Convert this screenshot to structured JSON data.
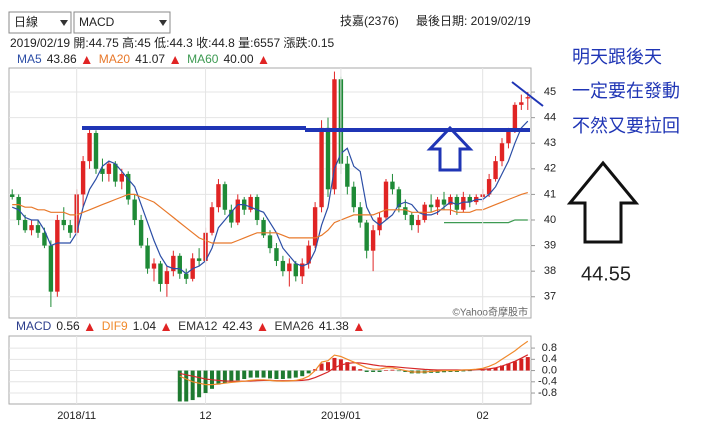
{
  "header": {
    "period": "日線",
    "indicator": "MACD",
    "stock": "技嘉(2376)",
    "last_date": "最後日期: 2019/02/19",
    "quote": "2019/02/19 開:44.75 高:45 低:44.3 收:44.8 量:6557 漲跌:0.15"
  },
  "chart_data": [
    {
      "type": "candlestick",
      "open": [
        41.0,
        40.9,
        40.0,
        39.6,
        39.8,
        39.5,
        39.0,
        37.2,
        40.0,
        39.8,
        39.5,
        41.0,
        42.3,
        43.4,
        42.0,
        41.8,
        42.2,
        41.5,
        41.8,
        40.8,
        40.0,
        39.0,
        38.1,
        38.3,
        37.5,
        38.0,
        38.6,
        37.9,
        37.7,
        38.5,
        38.4,
        39.5,
        40.5,
        41.4,
        40.4,
        39.9,
        40.8,
        40.4,
        40.9,
        40.0,
        39.4,
        38.9,
        38.4,
        38.0,
        38.3,
        37.8,
        38.3,
        39.0,
        40.5,
        43.6,
        41.2,
        45.5,
        42.2,
        41.3,
        40.5,
        39.9,
        38.8,
        39.6,
        40.1,
        41.5,
        41.2,
        40.5,
        40.2,
        39.8,
        40.0,
        40.6,
        40.5,
        40.8,
        40.6,
        40.9,
        40.4,
        40.9,
        40.7,
        40.9,
        41.0,
        41.6,
        42.3,
        43.0,
        43.5,
        44.5,
        44.75
      ],
      "high": [
        41.2,
        41.0,
        40.2,
        40.0,
        40.0,
        39.7,
        39.2,
        40.2,
        40.5,
        40.0,
        41.2,
        42.5,
        43.6,
        43.5,
        42.4,
        42.3,
        42.3,
        42.0,
        41.9,
        41.0,
        40.2,
        39.3,
        38.5,
        38.4,
        38.2,
        38.8,
        38.7,
        38.1,
        38.7,
        38.9,
        39.7,
        40.7,
        41.6,
        41.5,
        40.6,
        41.0,
        40.9,
        41.0,
        41.0,
        40.1,
        39.6,
        39.1,
        38.6,
        38.5,
        38.4,
        38.5,
        39.2,
        40.7,
        43.9,
        44.0,
        45.8,
        45.6,
        42.5,
        41.5,
        40.7,
        40.0,
        39.8,
        40.3,
        41.6,
        41.8,
        41.3,
        40.8,
        40.3,
        40.2,
        40.7,
        41.0,
        40.9,
        41.1,
        41.0,
        41.0,
        41.1,
        41.0,
        41.0,
        41.2,
        41.8,
        42.5,
        43.2,
        43.6,
        44.6,
        44.9,
        45
      ],
      "low": [
        40.8,
        39.8,
        39.5,
        39.4,
        39.3,
        38.9,
        36.6,
        37.0,
        39.6,
        39.3,
        39.4,
        40.5,
        42.0,
        41.8,
        41.5,
        41.5,
        41.3,
        41.2,
        40.6,
        39.8,
        38.9,
        37.9,
        37.6,
        37.2,
        37.0,
        37.8,
        37.7,
        37.5,
        37.6,
        38.2,
        38.3,
        39.4,
        40.3,
        40.2,
        39.7,
        39.8,
        40.2,
        40.3,
        39.8,
        39.3,
        38.7,
        38.2,
        37.8,
        37.4,
        37.6,
        37.5,
        38.1,
        38.9,
        40.3,
        40.9,
        41.0,
        41.8,
        41.0,
        40.3,
        39.7,
        38.5,
        38.0,
        39.4,
        40.0,
        41.0,
        40.3,
        40.0,
        39.6,
        39.5,
        39.9,
        40.3,
        40.2,
        40.4,
        40.2,
        40.2,
        40.3,
        40.5,
        40.6,
        40.7,
        40.9,
        41.5,
        42.1,
        42.8,
        43.4,
        44.3,
        44.3
      ],
      "close": [
        40.9,
        40.0,
        39.6,
        39.8,
        39.5,
        39.0,
        37.2,
        40.0,
        39.8,
        39.5,
        41.0,
        42.3,
        43.4,
        42.0,
        41.8,
        42.2,
        41.5,
        41.8,
        40.8,
        40.0,
        39.0,
        38.1,
        38.3,
        37.5,
        38.0,
        38.6,
        37.9,
        37.7,
        38.5,
        38.4,
        39.5,
        40.5,
        41.4,
        40.4,
        39.9,
        40.8,
        40.4,
        40.9,
        40.0,
        39.4,
        38.9,
        38.4,
        38.0,
        38.3,
        37.8,
        38.3,
        39.0,
        40.5,
        43.6,
        41.2,
        45.5,
        42.2,
        41.3,
        40.5,
        39.9,
        38.8,
        39.6,
        40.1,
        41.5,
        41.2,
        40.5,
        40.2,
        39.8,
        40.0,
        40.6,
        40.5,
        40.8,
        40.6,
        40.9,
        40.4,
        40.9,
        40.7,
        40.9,
        41.0,
        41.6,
        42.3,
        43.0,
        43.5,
        44.5,
        44.6,
        44.8
      ],
      "up_color": "#e02424",
      "down_color": "#1e8a36",
      "series": [
        {
          "name": "MA5",
          "value_label": "43.86",
          "color": "#2c4ea6",
          "values": [
            40.5,
            40.4,
            40.1,
            40.0,
            40.0,
            39.6,
            39.0,
            39.1,
            39.1,
            39.1,
            39.5,
            40.5,
            41.2,
            41.6,
            42.1,
            42.3,
            42.2,
            41.9,
            41.6,
            41.3,
            40.6,
            39.9,
            39.2,
            38.6,
            38.2,
            38.1,
            38.1,
            37.9,
            38.1,
            38.2,
            38.4,
            38.9,
            39.7,
            40.0,
            40.3,
            40.6,
            40.6,
            40.5,
            40.4,
            40.3,
            39.9,
            39.5,
            38.9,
            38.6,
            38.3,
            38.2,
            38.3,
            38.8,
            39.8,
            40.5,
            42.0,
            42.6,
            42.8,
            42.1,
            41.9,
            40.5,
            40.0,
            39.8,
            40.0,
            40.2,
            40.6,
            40.7,
            40.6,
            40.3,
            40.2,
            40.2,
            40.3,
            40.5,
            40.7,
            40.6,
            40.7,
            40.7,
            40.8,
            40.8,
            41.0,
            41.3,
            41.8,
            42.3,
            43.0,
            43.6,
            43.86
          ]
        },
        {
          "name": "MA20",
          "value_label": "41.07",
          "color": "#e8782a",
          "values": [
            40.6,
            40.6,
            40.5,
            40.5,
            40.4,
            40.4,
            40.3,
            40.3,
            40.3,
            40.2,
            40.2,
            40.3,
            40.4,
            40.5,
            40.6,
            40.7,
            40.8,
            40.9,
            41.0,
            41.0,
            40.9,
            40.8,
            40.7,
            40.5,
            40.3,
            40.1,
            39.9,
            39.7,
            39.5,
            39.3,
            39.2,
            39.1,
            39.1,
            39.1,
            39.1,
            39.2,
            39.3,
            39.4,
            39.5,
            39.5,
            39.5,
            39.5,
            39.4,
            39.3,
            39.3,
            39.3,
            39.3,
            39.3,
            39.4,
            39.6,
            39.9,
            40.0,
            40.1,
            40.2,
            40.2,
            40.2,
            40.2,
            40.3,
            40.4,
            40.4,
            40.4,
            40.4,
            40.3,
            40.3,
            40.3,
            40.3,
            40.4,
            40.4,
            40.4,
            40.3,
            40.3,
            40.3,
            40.4,
            40.4,
            40.5,
            40.6,
            40.7,
            40.8,
            40.9,
            41.0,
            41.07
          ]
        },
        {
          "name": "MA60",
          "value_label": "40.00",
          "color": "#3d9a52",
          "values": [
            null,
            null,
            null,
            null,
            null,
            null,
            null,
            null,
            null,
            null,
            null,
            null,
            null,
            null,
            null,
            null,
            null,
            null,
            null,
            null,
            null,
            null,
            null,
            null,
            null,
            null,
            null,
            null,
            null,
            null,
            null,
            null,
            null,
            null,
            null,
            null,
            null,
            null,
            null,
            null,
            null,
            null,
            null,
            null,
            null,
            null,
            null,
            null,
            null,
            null,
            null,
            null,
            null,
            null,
            null,
            null,
            null,
            null,
            null,
            null,
            null,
            null,
            null,
            null,
            null,
            null,
            null,
            39.9,
            39.9,
            39.9,
            39.9,
            39.9,
            39.9,
            39.9,
            39.9,
            39.9,
            39.9,
            39.9,
            40.0,
            40.0,
            40.0
          ]
        }
      ],
      "ylim": [
        36.17,
        45.94
      ],
      "yticks": [
        37,
        38,
        39,
        40,
        41,
        42,
        43,
        44,
        45
      ],
      "grid": true,
      "watermark": "©Yahoo奇摩股市"
    },
    {
      "type": "macd",
      "categories": [
        null,
        null,
        null,
        null,
        null,
        null,
        null,
        null,
        null,
        null,
        "2018/11",
        null,
        null,
        null,
        null,
        null,
        null,
        null,
        null,
        null,
        null,
        null,
        null,
        null,
        null,
        null,
        null,
        null,
        null,
        null,
        "12",
        null,
        null,
        null,
        null,
        null,
        null,
        null,
        null,
        null,
        null,
        null,
        null,
        null,
        null,
        null,
        null,
        null,
        null,
        null,
        null,
        "2019/01",
        null,
        null,
        null,
        null,
        null,
        null,
        null,
        null,
        null,
        null,
        null,
        null,
        null,
        null,
        null,
        null,
        null,
        null,
        null,
        null,
        null,
        "02",
        null,
        null,
        null,
        null,
        null,
        null,
        null
      ],
      "histogram": [
        null,
        null,
        null,
        null,
        null,
        null,
        null,
        null,
        null,
        null,
        null,
        null,
        null,
        null,
        null,
        null,
        null,
        null,
        null,
        null,
        null,
        null,
        null,
        null,
        null,
        null,
        -1.1,
        -1.1,
        -1.05,
        -0.95,
        -0.8,
        -0.65,
        -0.5,
        -0.45,
        -0.4,
        -0.35,
        -0.3,
        -0.25,
        -0.25,
        -0.25,
        -0.28,
        -0.3,
        -0.3,
        -0.28,
        -0.25,
        -0.2,
        -0.1,
        0.05,
        0.25,
        0.3,
        0.45,
        0.4,
        0.3,
        0.15,
        0.05,
        -0.05,
        -0.05,
        -0.05,
        0.02,
        0.03,
        -0.02,
        -0.05,
        -0.1,
        -0.1,
        -0.1,
        -0.08,
        -0.08,
        -0.06,
        -0.05,
        -0.05,
        -0.03,
        -0.02,
        0.0,
        0.02,
        0.05,
        0.1,
        0.18,
        0.25,
        0.33,
        0.42,
        0.48
      ],
      "up_color": "#d42020",
      "down_color": "#1e7a30",
      "series": [
        {
          "name": "MACD",
          "value_label": "0.56",
          "color": "#d62828",
          "values": [
            null,
            null,
            null,
            null,
            null,
            null,
            null,
            null,
            null,
            null,
            null,
            null,
            null,
            null,
            null,
            null,
            null,
            null,
            null,
            null,
            null,
            null,
            null,
            null,
            null,
            null,
            -0.1,
            -0.15,
            -0.2,
            -0.25,
            -0.3,
            -0.33,
            -0.35,
            -0.37,
            -0.38,
            -0.38,
            -0.38,
            -0.37,
            -0.36,
            -0.35,
            -0.35,
            -0.36,
            -0.36,
            -0.36,
            -0.36,
            -0.35,
            -0.32,
            -0.25,
            -0.15,
            -0.05,
            0.1,
            0.2,
            0.25,
            0.28,
            0.27,
            0.24,
            0.2,
            0.17,
            0.15,
            0.14,
            0.12,
            0.1,
            0.08,
            0.06,
            0.04,
            0.03,
            0.02,
            0.02,
            0.02,
            0.02,
            0.02,
            0.02,
            0.03,
            0.04,
            0.06,
            0.1,
            0.16,
            0.24,
            0.33,
            0.44,
            0.56
          ]
        },
        {
          "name": "DIF9",
          "value_label": "1.04",
          "color": "#f08a2c",
          "values": [
            null,
            null,
            null,
            null,
            null,
            null,
            null,
            null,
            null,
            null,
            null,
            null,
            null,
            null,
            null,
            null,
            null,
            null,
            null,
            null,
            null,
            null,
            null,
            null,
            null,
            null,
            -0.2,
            -0.3,
            -0.4,
            -0.45,
            -0.5,
            -0.5,
            -0.48,
            -0.45,
            -0.42,
            -0.4,
            -0.38,
            -0.35,
            -0.33,
            -0.33,
            -0.35,
            -0.37,
            -0.38,
            -0.37,
            -0.35,
            -0.3,
            -0.2,
            0.0,
            0.3,
            0.35,
            0.55,
            0.5,
            0.4,
            0.3,
            0.2,
            0.1,
            0.05,
            0.05,
            0.1,
            0.1,
            0.05,
            0.0,
            -0.05,
            -0.05,
            -0.05,
            -0.03,
            -0.02,
            0.0,
            0.0,
            0.0,
            0.02,
            0.03,
            0.05,
            0.08,
            0.15,
            0.25,
            0.4,
            0.55,
            0.7,
            0.88,
            1.04
          ]
        }
      ],
      "indicators": [
        {
          "name": "EMA12",
          "value": 42.43
        },
        {
          "name": "EMA26",
          "value": 41.38
        }
      ],
      "ylim": [
        -1.19,
        1.23
      ],
      "yticks": [
        0.8,
        0.4,
        {
          "value": 0,
          "label": "0.0"
        },
        -0.4,
        -0.8
      ],
      "grid": true
    }
  ],
  "annotations": {
    "note_lines": [
      "明天跟後天",
      "一定要在發動",
      "不然又要拉回"
    ],
    "price": "44.55"
  }
}
